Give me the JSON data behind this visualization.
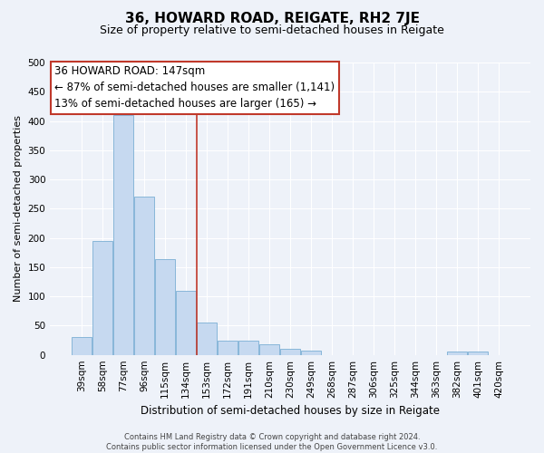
{
  "title": "36, HOWARD ROAD, REIGATE, RH2 7JE",
  "subtitle": "Size of property relative to semi-detached houses in Reigate",
  "xlabel": "Distribution of semi-detached houses by size in Reigate",
  "ylabel": "Number of semi-detached properties",
  "bar_labels": [
    "39sqm",
    "58sqm",
    "77sqm",
    "96sqm",
    "115sqm",
    "134sqm",
    "153sqm",
    "172sqm",
    "191sqm",
    "210sqm",
    "230sqm",
    "249sqm",
    "268sqm",
    "287sqm",
    "306sqm",
    "325sqm",
    "344sqm",
    "363sqm",
    "382sqm",
    "401sqm",
    "420sqm"
  ],
  "bar_values": [
    30,
    195,
    410,
    270,
    163,
    110,
    55,
    25,
    25,
    18,
    10,
    8,
    0,
    0,
    0,
    0,
    0,
    0,
    5,
    5,
    0
  ],
  "bar_color": "#c6d9f0",
  "bar_edge_color": "#7bafd4",
  "vline_color": "#c0392b",
  "vline_x": 5.5,
  "ylim": [
    0,
    500
  ],
  "yticks": [
    0,
    50,
    100,
    150,
    200,
    250,
    300,
    350,
    400,
    450,
    500
  ],
  "annotation_title": "36 HOWARD ROAD: 147sqm",
  "annotation_line1": "← 87% of semi-detached houses are smaller (1,141)",
  "annotation_line2": "13% of semi-detached houses are larger (165) →",
  "annotation_box_facecolor": "#ffffff",
  "annotation_box_edgecolor": "#c0392b",
  "footer_line1": "Contains HM Land Registry data © Crown copyright and database right 2024.",
  "footer_line2": "Contains public sector information licensed under the Open Government Licence v3.0.",
  "bg_color": "#eef2f9",
  "grid_color": "#ffffff",
  "title_fontsize": 11,
  "subtitle_fontsize": 9,
  "xlabel_fontsize": 8.5,
  "ylabel_fontsize": 8,
  "tick_fontsize": 7.5,
  "footer_fontsize": 6,
  "ann_fontsize": 8.5
}
